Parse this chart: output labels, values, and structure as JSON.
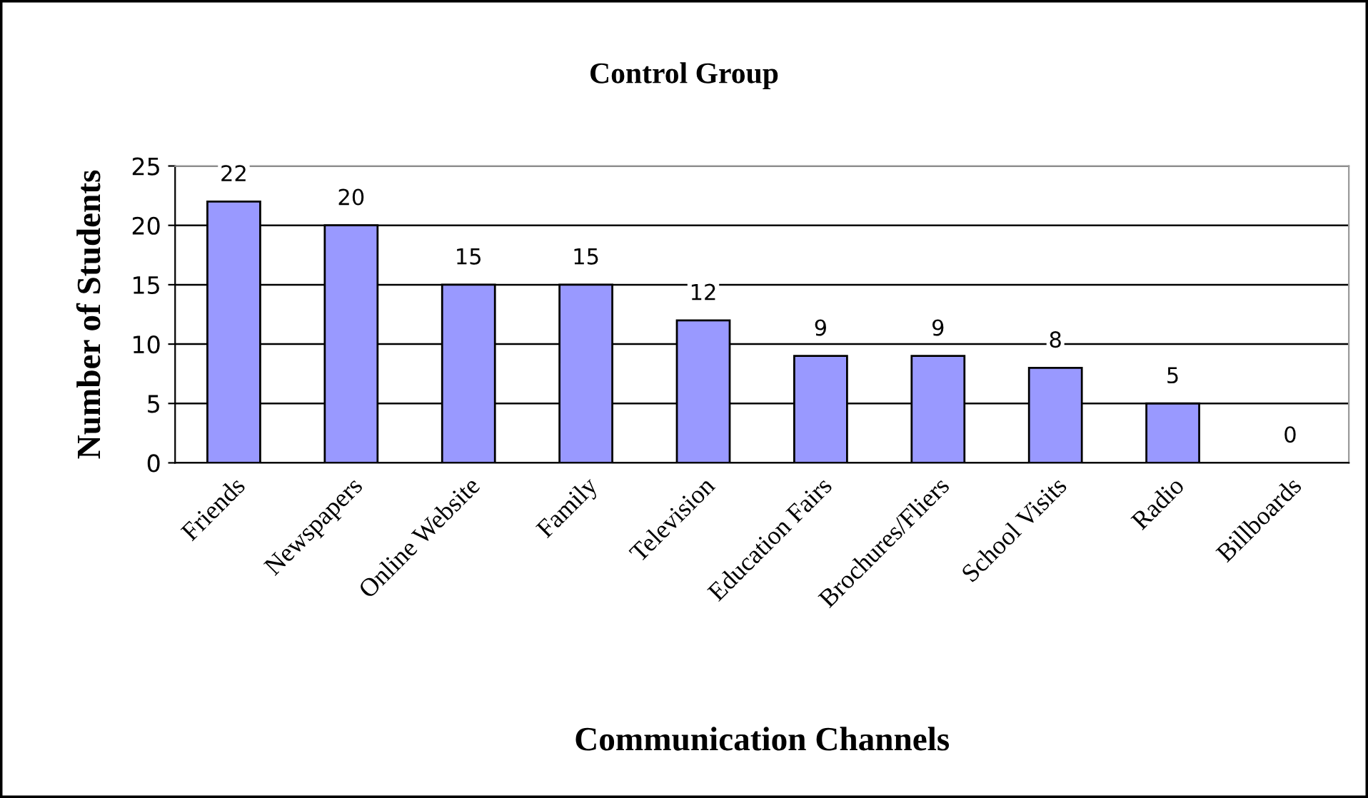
{
  "chart_data": {
    "type": "bar",
    "title": "Control Group",
    "xlabel": "Communication Channels",
    "ylabel": "Number of Students",
    "categories": [
      "Friends",
      "Newspapers",
      "Online Website",
      "Family",
      "Television",
      "Education Fairs",
      "Brochures/Fliers",
      "School Visits",
      "Radio",
      "Billboards"
    ],
    "values": [
      22,
      20,
      15,
      15,
      12,
      9,
      9,
      8,
      5,
      0
    ],
    "color": "#9999ff",
    "ylim": [
      0,
      25
    ],
    "yticks": [
      0,
      5,
      10,
      15,
      20,
      25
    ],
    "grid": "y",
    "data_labels": true,
    "legend": false
  }
}
